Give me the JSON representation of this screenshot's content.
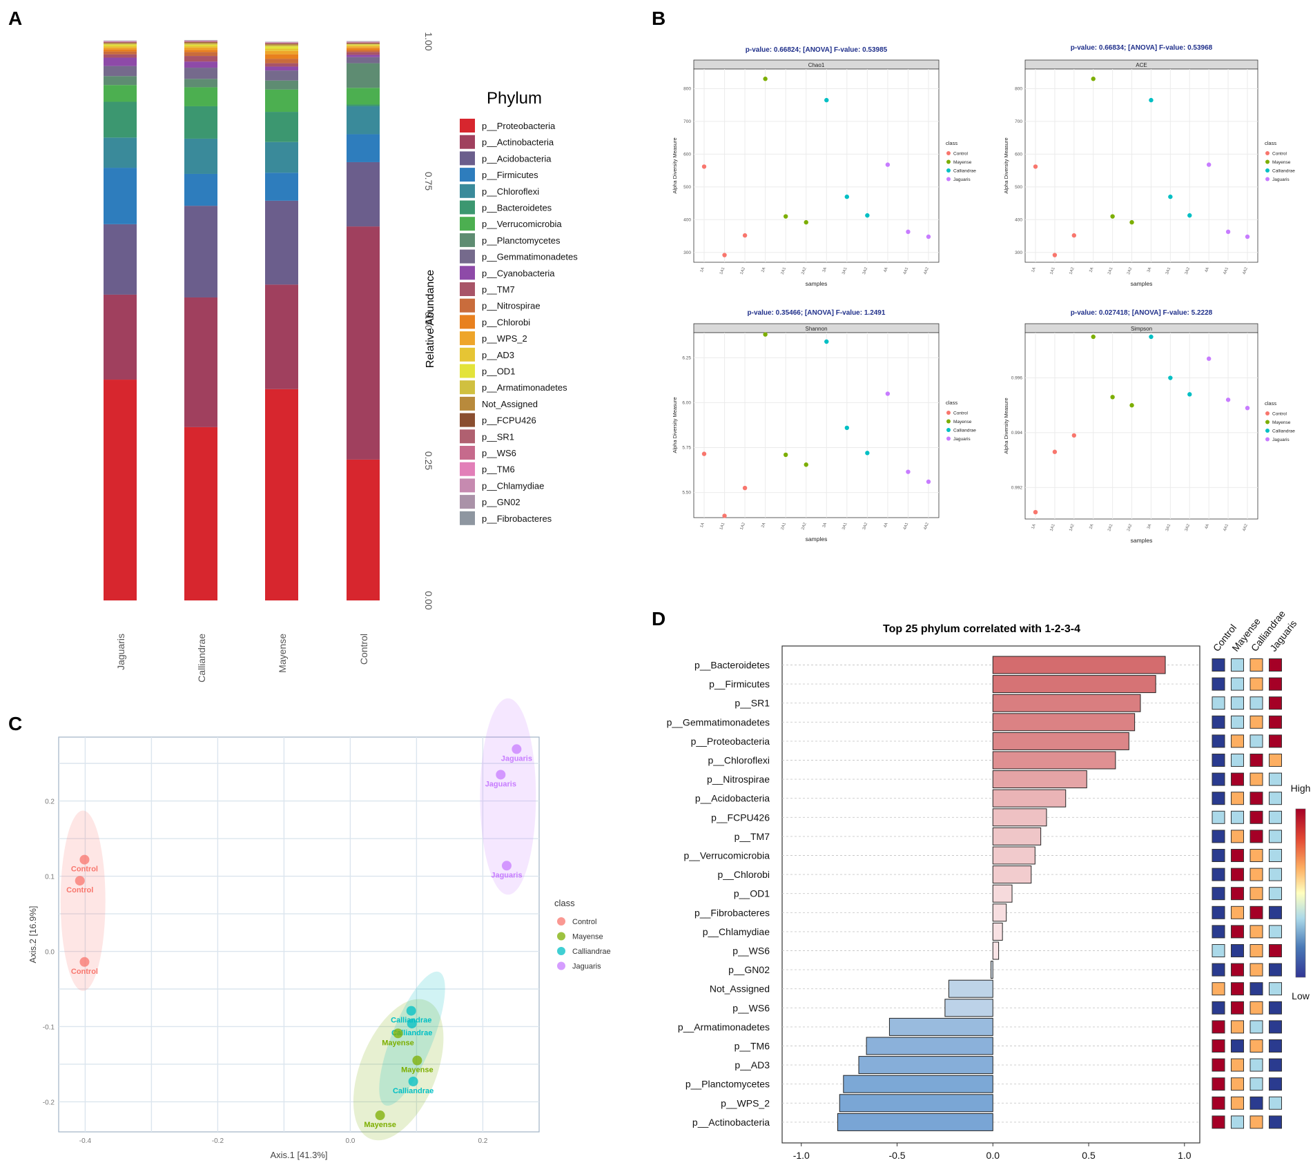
{
  "panel_labels": [
    "A",
    "B",
    "C",
    "D"
  ],
  "chart_data": [
    {
      "id": "A",
      "type": "bar",
      "stacked": true,
      "ylabel": "Relative Abundance",
      "ylim": [
        0,
        1
      ],
      "yticks": [
        0,
        0.25,
        0.5,
        0.75,
        1
      ],
      "ytick_labels": [
        "0.00",
        "0.25",
        "0.50",
        "0.75",
        "1.00"
      ],
      "categories": [
        "Jaguaris",
        "Calliandrae",
        "Mayense",
        "Control"
      ],
      "legend_title": "Phylum",
      "legend": [
        {
          "name": "p__Proteobacteria",
          "color": "#d7262e"
        },
        {
          "name": "p__Actinobacteria",
          "color": "#a0405e"
        },
        {
          "name": "p__Acidobacteria",
          "color": "#6b5e8c"
        },
        {
          "name": "p__Firmicutes",
          "color": "#2e7dbd"
        },
        {
          "name": "p__Chloroflexi",
          "color": "#3a8a9a"
        },
        {
          "name": "p__Bacteroidetes",
          "color": "#3c9770"
        },
        {
          "name": "p__Verrucomicrobia",
          "color": "#4caf50"
        },
        {
          "name": "p__Planctomycetes",
          "color": "#5e8c72"
        },
        {
          "name": "p__Gemmatimonadetes",
          "color": "#756a8c"
        },
        {
          "name": "p__Cyanobacteria",
          "color": "#8e4aa8"
        },
        {
          "name": "p__TM7",
          "color": "#a85468"
        },
        {
          "name": "p__Nitrospirae",
          "color": "#c96c3c"
        },
        {
          "name": "p__Chlorobi",
          "color": "#e8801e"
        },
        {
          "name": "p__WPS_2",
          "color": "#eea52a"
        },
        {
          "name": "p__AD3",
          "color": "#e6c534"
        },
        {
          "name": "p__OD1",
          "color": "#e3e33a"
        },
        {
          "name": "p__Armatimonadetes",
          "color": "#d0c040"
        },
        {
          "name": "Not_Assigned",
          "color": "#b88a3c"
        },
        {
          "name": "p__FCPU426",
          "color": "#8a4e30"
        },
        {
          "name": "p__SR1",
          "color": "#b06070"
        },
        {
          "name": "p__WS6",
          "color": "#c66a8c"
        },
        {
          "name": "p__TM6",
          "color": "#e27fb8"
        },
        {
          "name": "p__Chlamydiae",
          "color": "#c68ab0"
        },
        {
          "name": "p__GN02",
          "color": "#aa92a8"
        },
        {
          "name": "p__Fibrobacteres",
          "color": "#8e96a0"
        }
      ],
      "series": [
        {
          "name": "p__Proteobacteria",
          "values": [
            0.395,
            0.31,
            0.378,
            0.252
          ]
        },
        {
          "name": "p__Actinobacteria",
          "values": [
            0.152,
            0.232,
            0.187,
            0.417
          ]
        },
        {
          "name": "p__Acidobacteria",
          "values": [
            0.126,
            0.164,
            0.15,
            0.115
          ]
        },
        {
          "name": "p__Firmicutes",
          "values": [
            0.101,
            0.057,
            0.05,
            0.05
          ]
        },
        {
          "name": "p__Chloroflexi",
          "values": [
            0.054,
            0.063,
            0.055,
            0.05
          ]
        },
        {
          "name": "p__Bacteroidetes",
          "values": [
            0.064,
            0.058,
            0.054,
            0.003
          ]
        },
        {
          "name": "p__Verrucomicrobia",
          "values": [
            0.03,
            0.034,
            0.04,
            0.03
          ]
        },
        {
          "name": "p__Planctomycetes",
          "values": [
            0.016,
            0.015,
            0.016,
            0.044
          ]
        },
        {
          "name": "p__Gemmatimonadetes",
          "values": [
            0.018,
            0.02,
            0.018,
            0.011
          ]
        },
        {
          "name": "p__Cyanobacteria",
          "values": [
            0.015,
            0.011,
            0.007,
            0.004
          ]
        },
        {
          "name": "p__TM7",
          "values": [
            0.006,
            0.01,
            0.006,
            0.005
          ]
        },
        {
          "name": "p__Nitrospirae",
          "values": [
            0.005,
            0.007,
            0.008,
            0.003
          ]
        },
        {
          "name": "p__Chlorobi",
          "values": [
            0.004,
            0.004,
            0.008,
            0.004
          ]
        },
        {
          "name": "p__WPS_2",
          "values": [
            0.003,
            0.004,
            0.006,
            0.003
          ]
        },
        {
          "name": "p__AD3",
          "values": [
            0.003,
            0.003,
            0.004,
            0.002
          ]
        },
        {
          "name": "p__OD1",
          "values": [
            0.002,
            0.002,
            0.004,
            0.001
          ]
        },
        {
          "name": "p__Armatimonadetes",
          "values": [
            0.002,
            0.002,
            0.002,
            0.001
          ]
        },
        {
          "name": "Not_Assigned",
          "values": [
            0.001,
            0.002,
            0.002,
            0.001
          ]
        },
        {
          "name": "p__FCPU426",
          "values": [
            0.001,
            0.001,
            0.001,
            0.001
          ]
        },
        {
          "name": "p__SR1",
          "values": [
            0.001,
            0.001,
            0.001,
            0.001
          ]
        },
        {
          "name": "p__WS6",
          "values": [
            0.0005,
            0.0005,
            0.0005,
            0.0005
          ]
        },
        {
          "name": "p__TM6",
          "values": [
            0.0005,
            0.0005,
            0.0005,
            0.0005
          ]
        },
        {
          "name": "p__Chlamydiae",
          "values": [
            0.0005,
            0.0005,
            0.0005,
            0.0005
          ]
        },
        {
          "name": "p__GN02",
          "values": [
            0.0005,
            0.0005,
            0.0005,
            0.0005
          ]
        },
        {
          "name": "p__Fibrobacteres",
          "values": [
            0.0005,
            0.0005,
            0.0005,
            0.0005
          ]
        }
      ]
    },
    {
      "id": "B",
      "type": "scatter",
      "xlabel": "samples",
      "ylabel": "Alpha Diversity Measure",
      "categories": [
        "1A",
        "1A1",
        "1A2",
        "2A",
        "2A1",
        "2A2",
        "3A",
        "3A1",
        "3A2",
        "4A",
        "4A1",
        "4A2"
      ],
      "point_class": [
        "Control",
        "Control",
        "Control",
        "Mayense",
        "Mayense",
        "Mayense",
        "Calliandrae",
        "Calliandrae",
        "Calliandrae",
        "Jaguaris",
        "Jaguaris",
        "Jaguaris"
      ],
      "legend_title": "class",
      "legend": [
        {
          "name": "Control",
          "color": "#f8766d"
        },
        {
          "name": "Mayense",
          "color": "#7cae00"
        },
        {
          "name": "Calliandrae",
          "color": "#00bfc4"
        },
        {
          "name": "Jaguaris",
          "color": "#c77cff"
        }
      ],
      "panels": [
        {
          "title": "p-value: 0.66824; [ANOVA] F-value: 0.53985",
          "strip": "Chao1",
          "ylim": [
            270,
            860
          ],
          "yticks": [
            300,
            400,
            500,
            600,
            700,
            800
          ],
          "ytick_labels": [
            "300",
            "400",
            "500",
            "600",
            "700",
            "800"
          ],
          "values": [
            562,
            292,
            352,
            830,
            410,
            392,
            765,
            470,
            413,
            568,
            363,
            348
          ]
        },
        {
          "title": "p-value: 0.66834; [ANOVA] F-value: 0.53968",
          "strip": "ACE",
          "ylim": [
            270,
            860
          ],
          "yticks": [
            300,
            400,
            500,
            600,
            700,
            800
          ],
          "ytick_labels": [
            "300",
            "400",
            "500",
            "600",
            "700",
            "800"
          ],
          "values": [
            562,
            292,
            352,
            830,
            410,
            392,
            765,
            470,
            413,
            568,
            363,
            348
          ]
        },
        {
          "title": "p-value: 0.35466; [ANOVA] F-value: 1.2491",
          "strip": "Shannon",
          "ylim": [
            5.36,
            6.39
          ],
          "yticks": [
            5.5,
            5.75,
            6.0,
            6.25
          ],
          "ytick_labels": [
            "5.50",
            "5.75",
            "6.00",
            "6.25"
          ],
          "values": [
            5.715,
            5.37,
            5.525,
            6.38,
            5.71,
            5.655,
            6.34,
            5.86,
            5.72,
            6.05,
            5.615,
            5.56
          ]
        },
        {
          "title": "p-value: 0.027418; [ANOVA] F-value: 5.2228",
          "strip": "Simpson",
          "ylim": [
            0.99085,
            0.99765
          ],
          "yticks": [
            0.992,
            0.994,
            0.996
          ],
          "ytick_labels": [
            "0.992",
            "0.994",
            "0.996"
          ],
          "values": [
            0.9911,
            0.9933,
            0.9939,
            0.9975,
            0.9953,
            0.995,
            0.9975,
            0.996,
            0.9954,
            0.9967,
            0.9952,
            0.9949
          ]
        }
      ]
    },
    {
      "id": "C",
      "type": "scatter",
      "xlabel": "Axis.1   [41.3%]",
      "ylabel": "Axis.2   [16.9%]",
      "xlim": [
        -0.44,
        0.285
      ],
      "ylim": [
        -0.24,
        0.285
      ],
      "xticks": [
        -0.4,
        -0.2,
        0.0,
        0.2
      ],
      "xtick_labels": [
        "-0.4",
        "-0.2",
        "0.0",
        "0.2"
      ],
      "yticks": [
        -0.2,
        -0.1,
        0.0,
        0.1,
        0.2
      ],
      "ytick_labels": [
        "-0.2",
        "-0.1",
        "0.0",
        "0.1",
        "0.2"
      ],
      "legend_title": "class",
      "legend": [
        {
          "name": "Control",
          "color": "#f8766d"
        },
        {
          "name": "Mayense",
          "color": "#7cae00"
        },
        {
          "name": "Calliandrae",
          "color": "#00bfc4"
        },
        {
          "name": "Jaguaris",
          "color": "#c77cff"
        }
      ],
      "points": [
        {
          "class": "Control",
          "x": -0.401,
          "y": 0.122,
          "label": "Control"
        },
        {
          "class": "Control",
          "x": -0.408,
          "y": 0.094,
          "label": "Control"
        },
        {
          "class": "Control",
          "x": -0.401,
          "y": -0.014,
          "label": "Control"
        },
        {
          "class": "Jaguaris",
          "x": 0.251,
          "y": 0.269,
          "label": "Jaguaris"
        },
        {
          "class": "Jaguaris",
          "x": 0.227,
          "y": 0.235,
          "label": "Jaguaris"
        },
        {
          "class": "Jaguaris",
          "x": 0.236,
          "y": 0.114,
          "label": "Jaguaris"
        },
        {
          "class": "Calliandrae",
          "x": 0.092,
          "y": -0.079,
          "label": "Calliandrae"
        },
        {
          "class": "Calliandrae",
          "x": 0.093,
          "y": -0.096,
          "label": "Calliandrae"
        },
        {
          "class": "Calliandrae",
          "x": 0.095,
          "y": -0.173,
          "label": "Calliandrae"
        },
        {
          "class": "Mayense",
          "x": 0.072,
          "y": -0.109,
          "label": "Mayense"
        },
        {
          "class": "Mayense",
          "x": 0.101,
          "y": -0.145,
          "label": "Mayense"
        },
        {
          "class": "Mayense",
          "x": 0.045,
          "y": -0.218,
          "label": "Mayense"
        }
      ]
    },
    {
      "id": "D",
      "type": "bar",
      "orientation": "horizontal",
      "title": "Top 25 phylum correlated with 1-2-3-4",
      "xlim": [
        -1.1,
        1.08
      ],
      "xticks": [
        -1.0,
        -0.5,
        0.0,
        0.5,
        1.0
      ],
      "xtick_labels": [
        "-1.0",
        "-0.5",
        "0.0",
        "0.5",
        "1.0"
      ],
      "categories": [
        "p__Bacteroidetes",
        "p__Firmicutes",
        "p__SR1",
        "p__Gemmatimonadetes",
        "p__Proteobacteria",
        "p__Chloroflexi",
        "p__Nitrospirae",
        "p__Acidobacteria",
        "p__FCPU426",
        "p__TM7",
        "p__Verrucomicrobia",
        "p__Chlorobi",
        "p__OD1",
        "p__Fibrobacteres",
        "p__Chlamydiae",
        "p__WS6",
        "p__GN02",
        "Not_Assigned",
        "p__WS6",
        "p__Armatimonadetes",
        "p__TM6",
        "p__AD3",
        "p__Planctomycetes",
        "p__WPS_2",
        "p__Actinobacteria"
      ],
      "values": [
        0.9,
        0.85,
        0.77,
        0.74,
        0.71,
        0.64,
        0.49,
        0.38,
        0.28,
        0.25,
        0.22,
        0.2,
        0.1,
        0.07,
        0.05,
        0.03,
        -0.01,
        -0.23,
        -0.25,
        -0.54,
        -0.66,
        -0.7,
        -0.78,
        -0.8,
        -0.81
      ],
      "heatmap_columns": [
        "Control",
        "Mayense",
        "Calliandrae",
        "Jaguaris"
      ],
      "heatmap_levels": {
        "L": "#2a3b8f",
        "ML": "#abd9e9",
        "MH": "#fdae61",
        "H": "#a50026"
      },
      "heatmap": [
        [
          "L",
          "ML",
          "MH",
          "H"
        ],
        [
          "L",
          "ML",
          "MH",
          "H"
        ],
        [
          "ML",
          "ML",
          "ML",
          "H"
        ],
        [
          "L",
          "ML",
          "MH",
          "H"
        ],
        [
          "L",
          "MH",
          "ML",
          "H"
        ],
        [
          "L",
          "ML",
          "H",
          "MH"
        ],
        [
          "L",
          "H",
          "MH",
          "ML"
        ],
        [
          "L",
          "MH",
          "H",
          "ML"
        ],
        [
          "ML",
          "ML",
          "H",
          "ML"
        ],
        [
          "L",
          "MH",
          "H",
          "ML"
        ],
        [
          "L",
          "H",
          "MH",
          "ML"
        ],
        [
          "L",
          "H",
          "MH",
          "ML"
        ],
        [
          "L",
          "H",
          "MH",
          "ML"
        ],
        [
          "L",
          "MH",
          "H",
          "L"
        ],
        [
          "L",
          "H",
          "MH",
          "ML"
        ],
        [
          "ML",
          "L",
          "MH",
          "H"
        ],
        [
          "L",
          "H",
          "MH",
          "L"
        ],
        [
          "MH",
          "H",
          "L",
          "ML"
        ],
        [
          "L",
          "H",
          "MH",
          "L"
        ],
        [
          "H",
          "MH",
          "ML",
          "L"
        ],
        [
          "H",
          "L",
          "MH",
          "L"
        ],
        [
          "H",
          "MH",
          "ML",
          "L"
        ],
        [
          "H",
          "MH",
          "ML",
          "L"
        ],
        [
          "H",
          "MH",
          "L",
          "ML"
        ],
        [
          "H",
          "ML",
          "MH",
          "L"
        ]
      ],
      "colorbar_labels": [
        "High",
        "Low"
      ]
    }
  ]
}
